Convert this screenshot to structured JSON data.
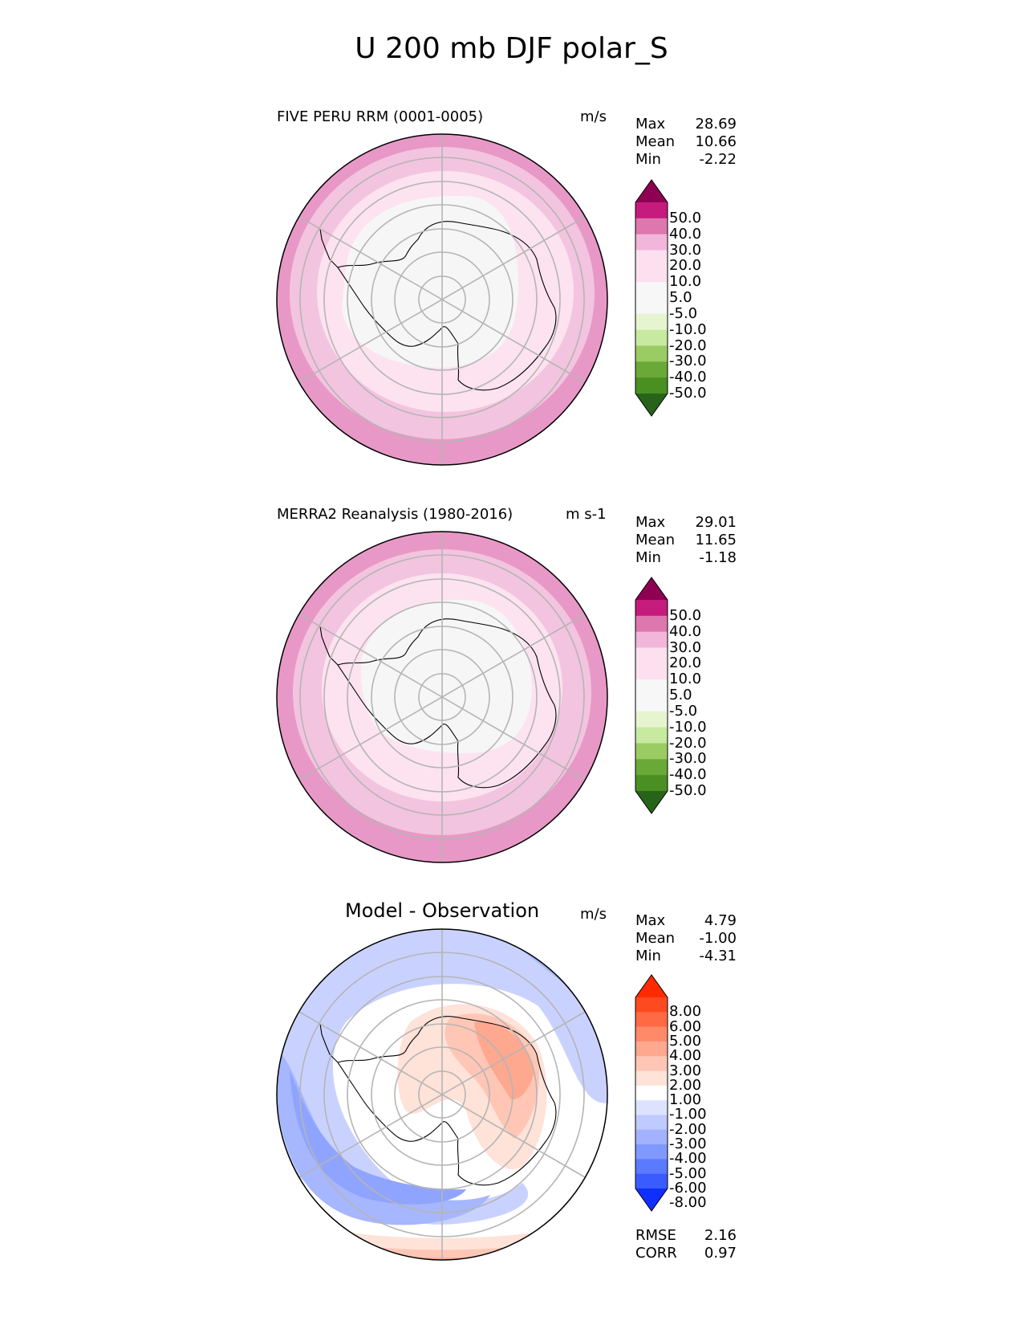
{
  "title": "U 200 mb DJF polar_S",
  "chart_data": [
    {
      "type": "polar-contour-map",
      "left_label": "FIVE PERU RRM (0001-0005)",
      "units": "m/s",
      "stats": [
        {
          "name": "Max",
          "value": "28.69"
        },
        {
          "name": "Mean",
          "value": "10.66"
        },
        {
          "name": "Min",
          "value": "-2.22"
        }
      ],
      "levels": [
        "50.0",
        "40.0",
        "30.0",
        "20.0",
        "10.0",
        "5.0",
        "-5.0",
        "-10.0",
        "-20.0",
        "-30.0",
        "-40.0",
        "-50.0"
      ],
      "colors": [
        "#8e0152",
        "#c51b7d",
        "#de77ae",
        "#f1b6da",
        "#fde0ef",
        "#f7f7f7",
        "#f7f7f7",
        "#e6f5d0",
        "#b8e186",
        "#7fbc41",
        "#4d9221",
        "#276419"
      ],
      "color_top": [
        "#8e0152",
        "#c51b7d",
        "#de77ae",
        "#f1b6da",
        "#fde0ef",
        "#fde0ef",
        "#f7f7f7",
        "#f7f7f7",
        "#e6f5d0",
        "#c7e9a0",
        "#9bcc63",
        "#6aa838",
        "#4a8f22",
        "#276419"
      ],
      "contour_rings": [
        {
          "value": 25,
          "color": "#e898c6"
        },
        {
          "value": 15,
          "color": "#f3c4df"
        },
        {
          "value": 7.5,
          "color": "#fce3ef"
        },
        {
          "value": 0,
          "color": "#f6f6f6"
        }
      ]
    },
    {
      "type": "polar-contour-map",
      "left_label": "MERRA2 Reanalysis (1980-2016)",
      "units": "m s-1",
      "stats": [
        {
          "name": "Max",
          "value": "29.01"
        },
        {
          "name": "Mean",
          "value": "11.65"
        },
        {
          "name": "Min",
          "value": "-1.18"
        }
      ],
      "levels": [
        "50.0",
        "40.0",
        "30.0",
        "20.0",
        "10.0",
        "5.0",
        "-5.0",
        "-10.0",
        "-20.0",
        "-30.0",
        "-40.0",
        "-50.0"
      ],
      "color_top": [
        "#8e0152",
        "#c51b7d",
        "#de77ae",
        "#f1b6da",
        "#fde0ef",
        "#fde0ef",
        "#f7f7f7",
        "#f7f7f7",
        "#e6f5d0",
        "#c7e9a0",
        "#9bcc63",
        "#6aa838",
        "#4a8f22",
        "#276419"
      ],
      "contour_rings": [
        {
          "value": 25,
          "color": "#e898c6"
        },
        {
          "value": 15,
          "color": "#f3c4df"
        },
        {
          "value": 7.5,
          "color": "#fce3ef"
        },
        {
          "value": 0,
          "color": "#f6f6f6"
        }
      ]
    },
    {
      "type": "polar-contour-map",
      "center_label": "Model - Observation",
      "units": "m/s",
      "stats": [
        {
          "name": "Max",
          "value": "4.79"
        },
        {
          "name": "Mean",
          "value": "-1.00"
        },
        {
          "name": "Min",
          "value": "-4.31"
        }
      ],
      "extra_stats": [
        {
          "name": "RMSE",
          "value": "2.16"
        },
        {
          "name": "CORR",
          "value": "0.97"
        }
      ],
      "levels": [
        "8.00",
        "6.00",
        "5.00",
        "4.00",
        "3.00",
        "2.00",
        "1.00",
        "-1.00",
        "-2.00",
        "-3.00",
        "-4.00",
        "-5.00",
        "-6.00",
        "-8.00"
      ],
      "color_top": [
        "#ff2a00",
        "#ff4a1f",
        "#ff6a45",
        "#ff8a6a",
        "#ffa890",
        "#ffc6b5",
        "#ffe2d8",
        "#ffffff",
        "#dde3ff",
        "#bfcaff",
        "#a3b2ff",
        "#8099ff",
        "#5a7aff",
        "#3a5cff",
        "#0f2fff"
      ]
    }
  ]
}
